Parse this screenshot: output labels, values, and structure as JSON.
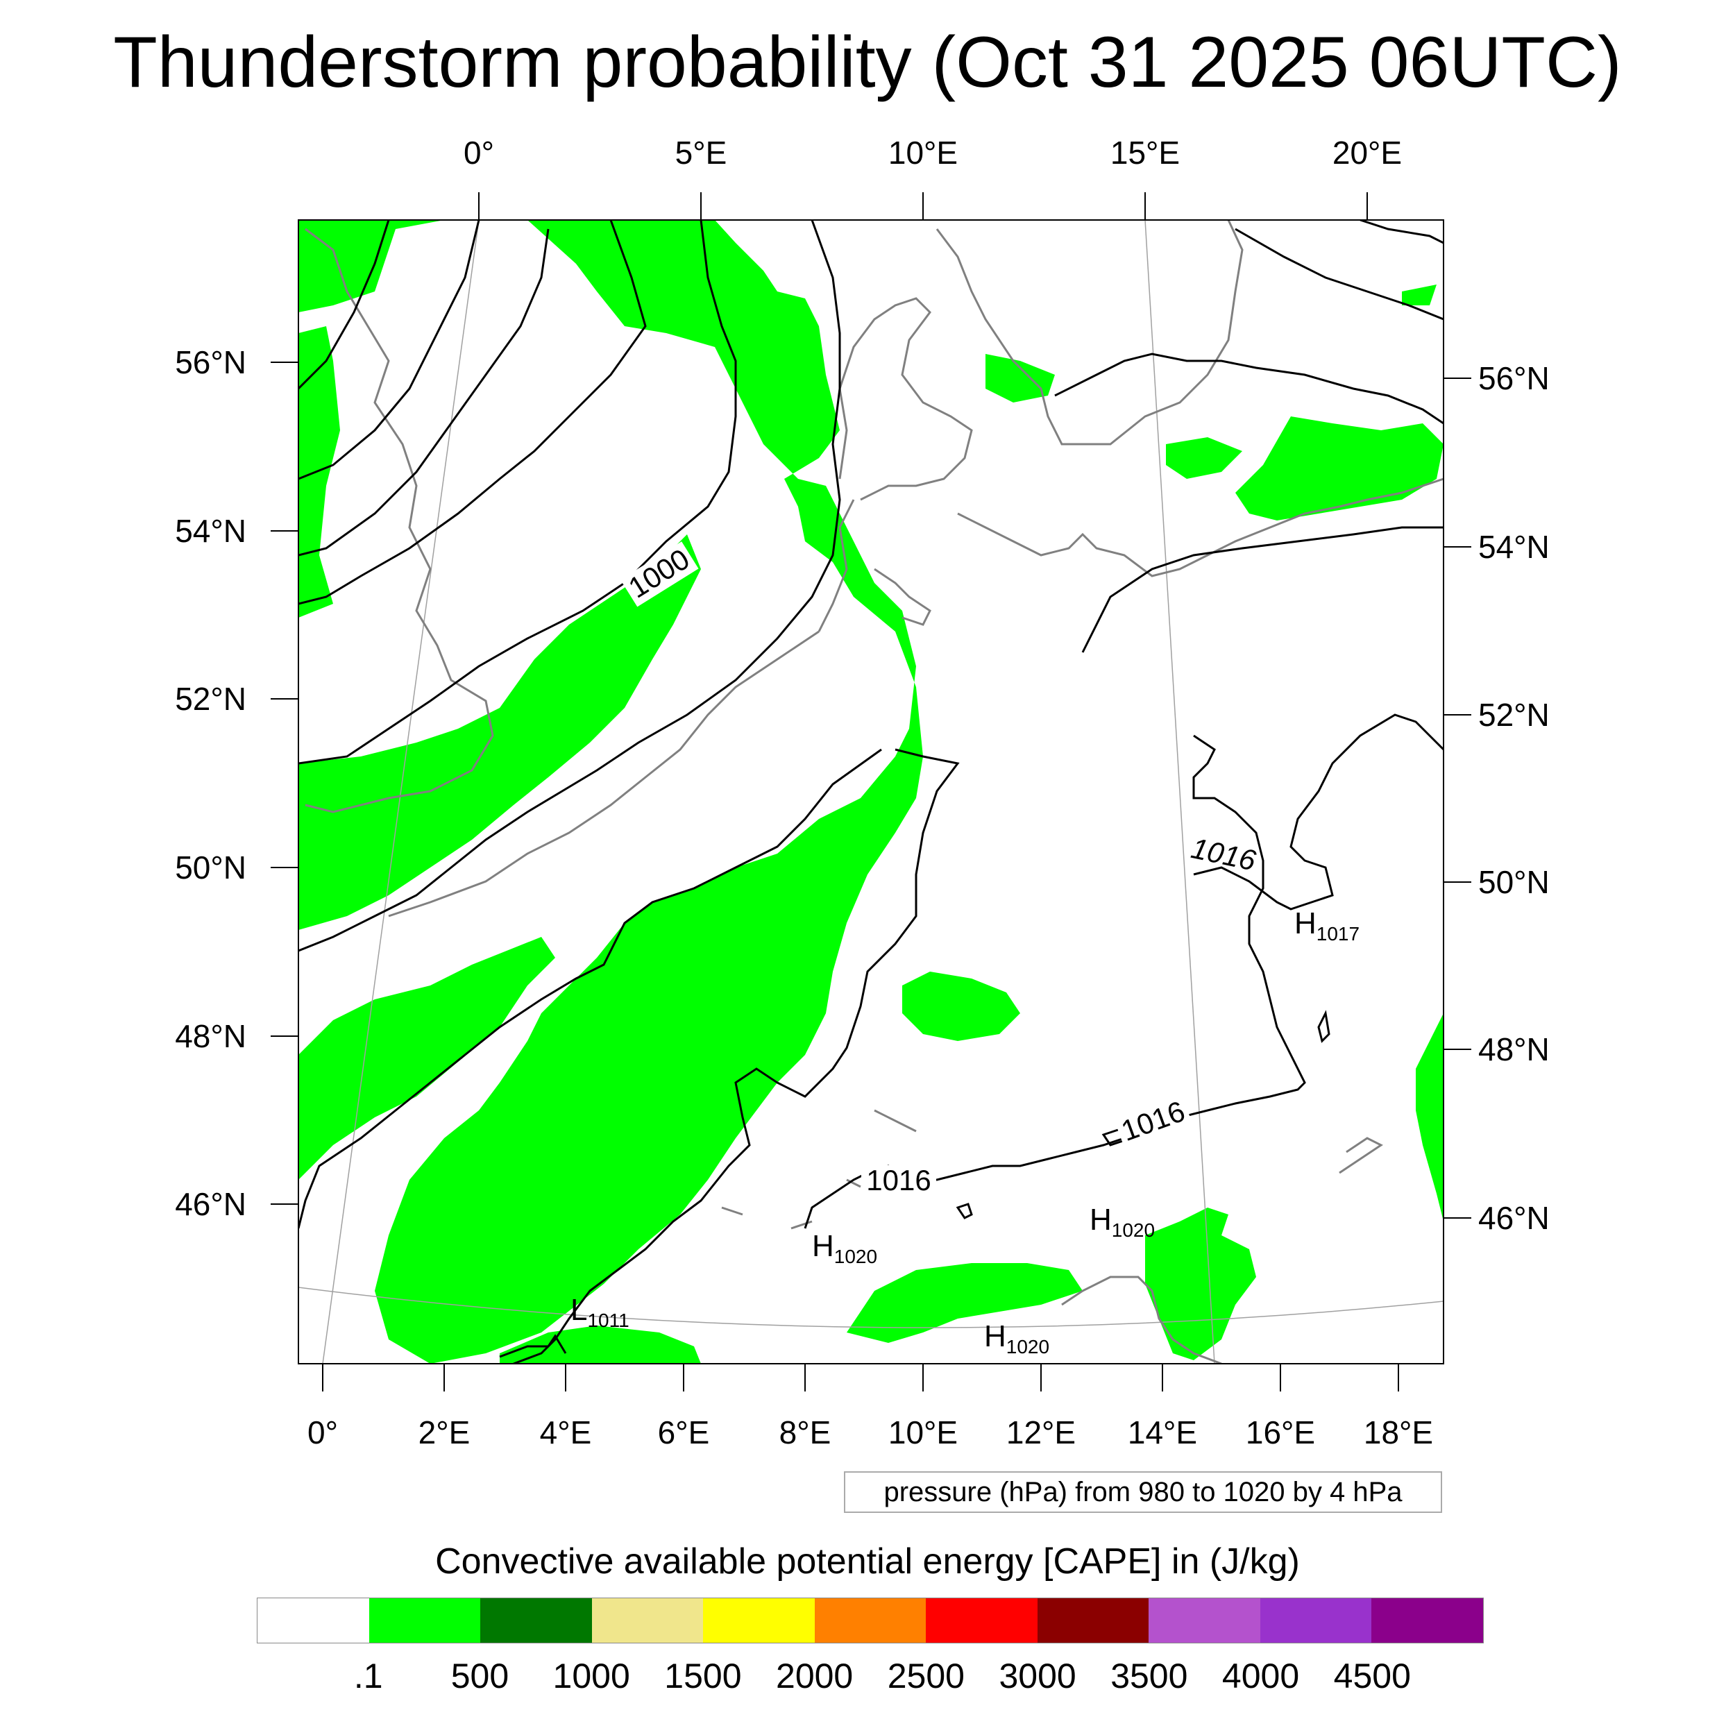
{
  "title": "Thunderstorm probability (Oct 31 2025 06UTC)",
  "map": {
    "top_lon_labels": [
      "0°",
      "5°E",
      "10°E",
      "15°E",
      "20°E"
    ],
    "bottom_lon_labels": [
      "0°",
      "2°E",
      "4°E",
      "6°E",
      "8°E",
      "10°E",
      "12°E",
      "14°E",
      "16°E",
      "18°E"
    ],
    "left_lat_labels": [
      "56°N",
      "54°N",
      "52°N",
      "50°N",
      "48°N",
      "46°N"
    ],
    "right_lat_labels": [
      "56°N",
      "54°N",
      "52°N",
      "50°N",
      "48°N",
      "46°N"
    ],
    "contour_labels": [
      "1000",
      "1016",
      "1016",
      "1016"
    ],
    "pressure_centers": [
      {
        "letter": "H",
        "value": "1017"
      },
      {
        "letter": "H",
        "value": "1020"
      },
      {
        "letter": "H",
        "value": "1020"
      },
      {
        "letter": "H",
        "value": "1020"
      },
      {
        "letter": "L",
        "value": "1011"
      }
    ],
    "colors": {
      "cape_fill": "#00ff00",
      "isobar": "#000000",
      "coastline": "#808080",
      "graticule": "#a0a0a0"
    }
  },
  "pressure_note": "pressure (hPa) from 980 to 1020 by 4 hPa",
  "colorbar": {
    "title": "Convective available potential energy [CAPE] in (J/kg)",
    "colors": [
      "#ffffff",
      "#00ff00",
      "#007800",
      "#f0e68c",
      "#ffff00",
      "#ff8000",
      "#ff0000",
      "#8b0000",
      "#b452cd",
      "#9932cc",
      "#8b008b"
    ],
    "labels": [
      ".1",
      "500",
      "1000",
      "1500",
      "2000",
      "2500",
      "3000",
      "3500",
      "4000",
      "4500"
    ]
  }
}
